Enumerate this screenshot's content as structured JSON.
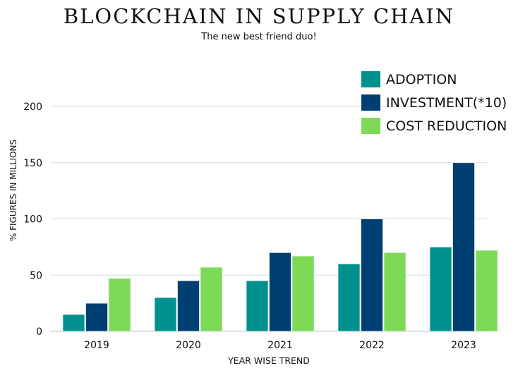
{
  "chart_data": {
    "type": "bar",
    "title": "BLOCKCHAIN IN SUPPLY CHAIN",
    "subtitle": "The new best friend duo!",
    "xlabel": "YEAR WISE TREND",
    "ylabel": "% FIGURES IN MILLIONS",
    "ylim": [
      0,
      200
    ],
    "yticks": [
      0,
      50,
      100,
      150,
      200
    ],
    "grid": true,
    "legend_position": "top-right",
    "categories": [
      "2019",
      "2020",
      "2021",
      "2022",
      "2023"
    ],
    "series": [
      {
        "name": "ADOPTION",
        "color": "#00918f",
        "values": [
          15,
          30,
          45,
          60,
          75
        ]
      },
      {
        "name": "INVESTMENT(*10)",
        "color": "#003f72",
        "values": [
          25,
          45,
          70,
          100,
          150
        ]
      },
      {
        "name": "COST REDUCTION",
        "color": "#7ed957",
        "values": [
          47,
          57,
          67,
          70,
          72
        ]
      }
    ]
  }
}
